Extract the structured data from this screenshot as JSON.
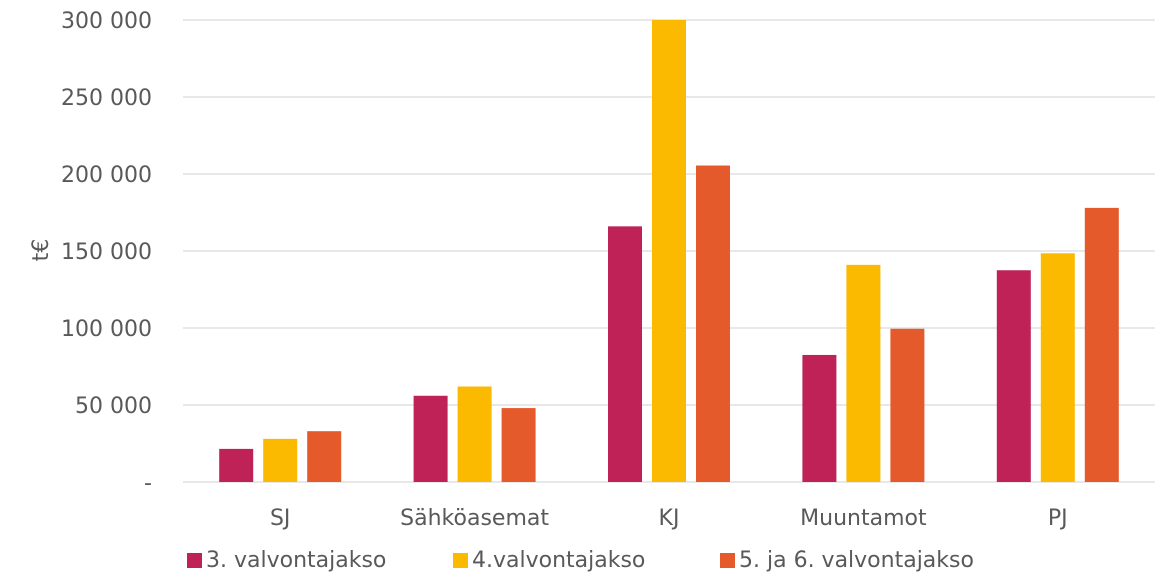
{
  "chart_data": {
    "type": "bar",
    "title": "",
    "xlabel": "",
    "ylabel": "t€",
    "categories": [
      "SJ",
      "Sähköasemat",
      "KJ",
      "Muuntamot",
      "PJ"
    ],
    "series": [
      {
        "name": "3. valvontajakso",
        "color": "#BE2256",
        "values": [
          21500,
          56000,
          166000,
          82500,
          137500
        ]
      },
      {
        "name": "4.valvontajakso",
        "color": "#FBB900",
        "values": [
          28000,
          62000,
          300000,
          141000,
          148500
        ]
      },
      {
        "name": "5. ja 6. valvontajakso",
        "color": "#E55A2B",
        "values": [
          33000,
          48000,
          205500,
          99500,
          178000
        ]
      }
    ],
    "ylim": [
      0,
      300000
    ],
    "yticks": [
      0,
      50000,
      100000,
      150000,
      200000,
      250000,
      300000
    ],
    "ytick_labels": [
      "-",
      "50 000",
      "100 000",
      "150 000",
      "200 000",
      "250 000",
      "300 000"
    ],
    "grid": true,
    "legend_position": "bottom"
  }
}
